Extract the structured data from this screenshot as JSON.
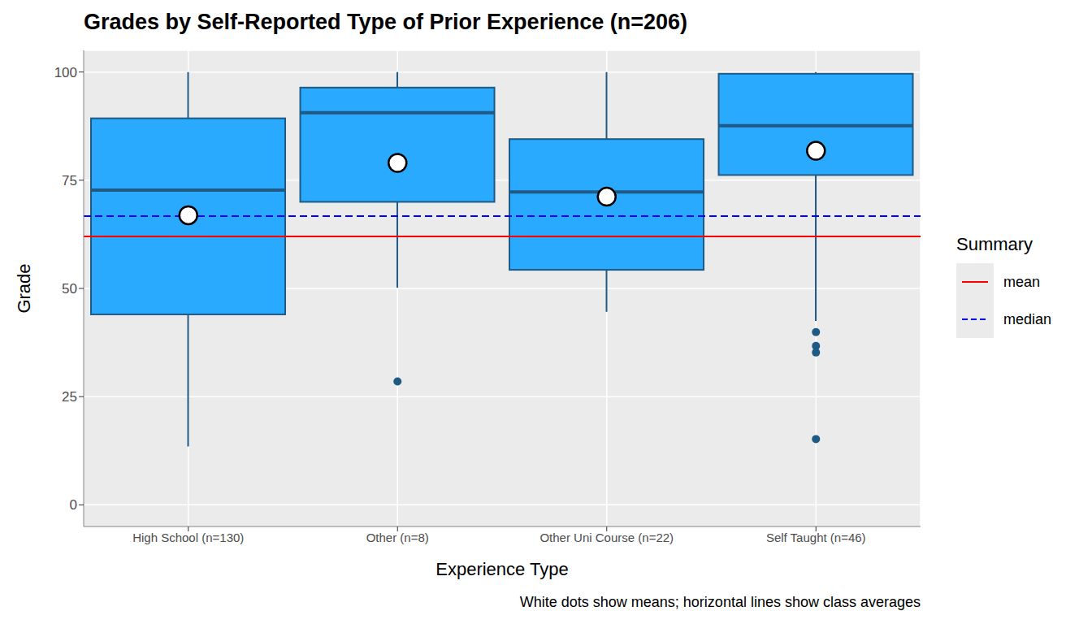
{
  "chart_data": {
    "type": "boxplot",
    "title": "Grades by Self-Reported Type of Prior Experience (n=206)",
    "x_label": "Experience Type",
    "y_label": "Grade",
    "caption": "White dots show means; horizontal lines show class averages",
    "legend_title": "Summary",
    "categories": [
      "High School (n=130)",
      "Other (n=8)",
      "Other Uni Course (n=22)",
      "Self Taught (n=46)"
    ],
    "boxes": [
      {
        "whisker_low": 13.5,
        "q1": 44.0,
        "median": 72.7,
        "q3": 89.3,
        "whisker_high": 100,
        "mean": 66.9,
        "outliers": []
      },
      {
        "whisker_low": 50.2,
        "q1": 70.0,
        "median": 90.6,
        "q3": 96.4,
        "whisker_high": 100,
        "mean": 79.0,
        "outliers": [
          28.5
        ]
      },
      {
        "whisker_low": 44.6,
        "q1": 54.3,
        "median": 72.3,
        "q3": 84.5,
        "whisker_high": 100,
        "mean": 71.2,
        "outliers": []
      },
      {
        "whisker_low": 42.5,
        "q1": 76.2,
        "median": 87.6,
        "q3": 99.6,
        "whisker_high": 100,
        "mean": 81.8,
        "outliers": [
          39.9,
          36.7,
          35.2,
          15.2
        ]
      }
    ],
    "color": "#29AAFF",
    "ylim": [
      -5,
      105
    ],
    "yticks": [
      0,
      25,
      50,
      75,
      100
    ],
    "grid": true,
    "reference_lines": [
      {
        "name": "mean",
        "value": 62.0,
        "color": "#FF0000",
        "line_style": "solid"
      },
      {
        "name": "median",
        "value": 66.7,
        "color": "#0000FF",
        "line_style": "dashed"
      }
    ],
    "legend": "right"
  }
}
